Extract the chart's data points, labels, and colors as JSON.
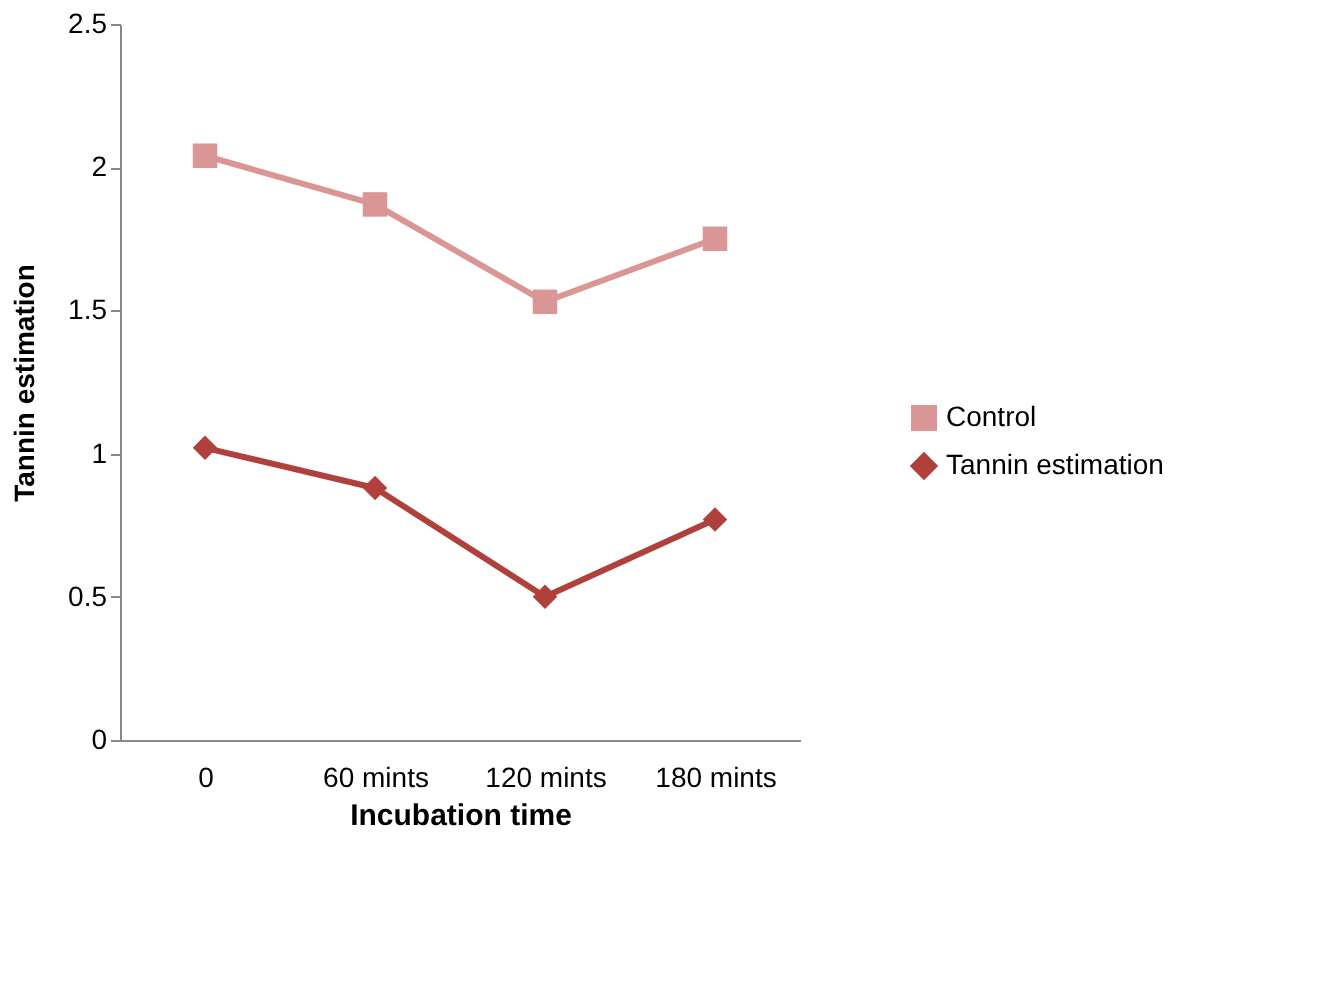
{
  "chart_data": {
    "type": "line",
    "xlabel": "Incubation time",
    "ylabel": "Tannin estimation",
    "categories": [
      "0",
      "60 mints",
      "120 mints",
      "180 mints"
    ],
    "series": [
      {
        "name": "Control",
        "color": "#d99694",
        "marker": "square",
        "values": [
          2.04,
          1.87,
          1.53,
          1.75
        ]
      },
      {
        "name": "Tannin estimation",
        "color": "#b0403c",
        "marker": "diamond",
        "values": [
          1.02,
          0.88,
          0.5,
          0.77
        ]
      }
    ],
    "ylim": [
      0,
      2.5
    ],
    "yticks": [
      0,
      0.5,
      1,
      1.5,
      2,
      2.5
    ],
    "grid": false,
    "legend": "right"
  }
}
